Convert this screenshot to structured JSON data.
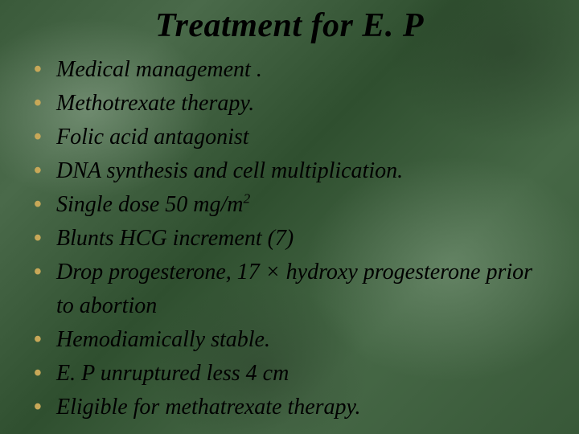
{
  "slide": {
    "title": "Treatment for E. P",
    "title_fontsize": 42,
    "title_color": "#000000",
    "bullet_fontsize": 28,
    "bullet_lineheight": 42,
    "bullet_marker_color": "#c8a858",
    "bullet_color": "#000000",
    "background_base": "#3a5a3a",
    "items": [
      {
        "html": "Medical management ."
      },
      {
        "html": "Methotrexate therapy."
      },
      {
        "html": "Folic acid antagonist"
      },
      {
        "html": "DNA synthesis and cell multiplication."
      },
      {
        "html": "Single dose 50 mg/m<sup>2</sup>"
      },
      {
        "html": "Blunts HCG increment (7)"
      },
      {
        "html": "Drop progesterone, 17 × hydroxy progesterone prior to abortion"
      },
      {
        "html": "Hemodiamically stable."
      },
      {
        "html": "E. P unruptured less 4 cm"
      },
      {
        "html": "Eligible for methatrexate therapy."
      }
    ]
  }
}
